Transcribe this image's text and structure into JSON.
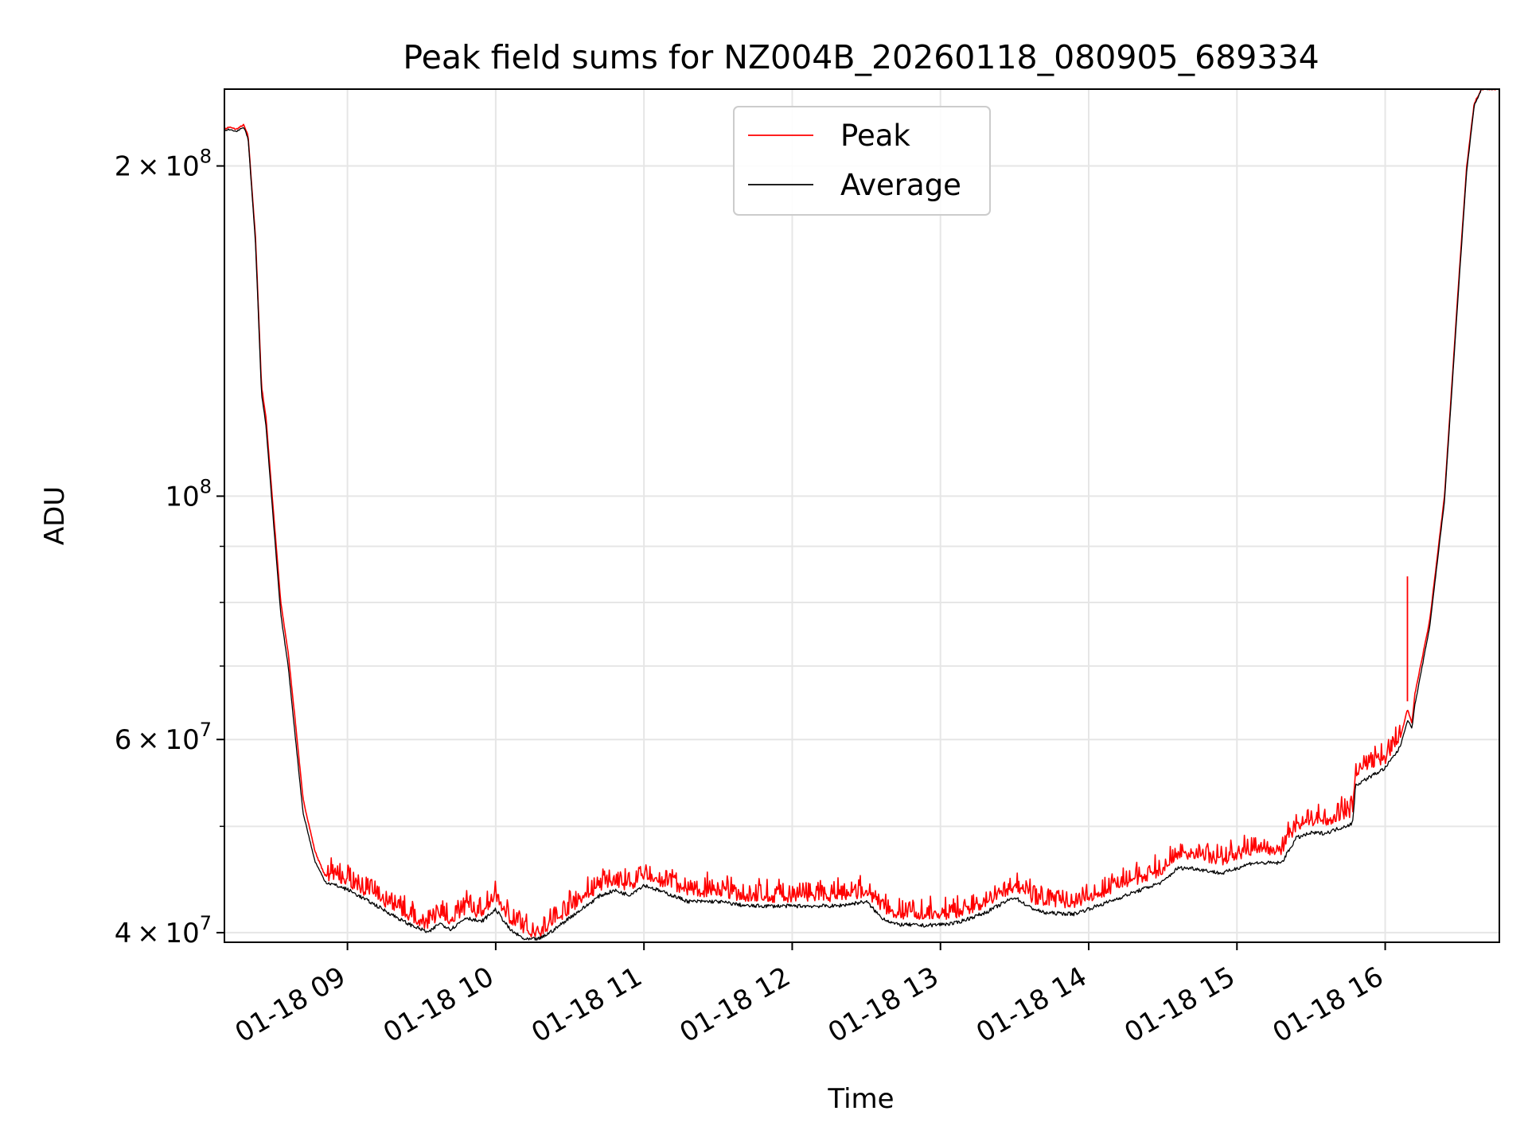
{
  "chart_data": {
    "type": "line",
    "title": "Peak field sums for NZ004B_20260118_080905_689334",
    "xlabel": "Time",
    "ylabel": "ADU",
    "yscale": "log",
    "grid": true,
    "legend_position": "upper-center",
    "x_unit": "hours since 01-18 00:00",
    "xlim": [
      8.17,
      16.77
    ],
    "ylim": [
      39200000,
      235000000
    ],
    "x_ticks": [
      {
        "value": 9,
        "label": "01-18 09"
      },
      {
        "value": 10,
        "label": "01-18 10"
      },
      {
        "value": 11,
        "label": "01-18 11"
      },
      {
        "value": 12,
        "label": "01-18 12"
      },
      {
        "value": 13,
        "label": "01-18 13"
      },
      {
        "value": 14,
        "label": "01-18 14"
      },
      {
        "value": 15,
        "label": "01-18 15"
      },
      {
        "value": 16,
        "label": "01-18 16"
      }
    ],
    "y_ticks": [
      {
        "value": 40000000,
        "mantissa": "4",
        "exponent": "7",
        "label": "4×10^7"
      },
      {
        "value": 60000000,
        "mantissa": "6",
        "exponent": "7",
        "label": "6×10^7"
      },
      {
        "value": 100000000,
        "mantissa": "",
        "exponent": "8",
        "label": "10^8"
      },
      {
        "value": 200000000,
        "mantissa": "2",
        "exponent": "8",
        "label": "2×10^8"
      }
    ],
    "y_minor_ticks": [
      50000000,
      70000000,
      80000000,
      90000000
    ],
    "series": [
      {
        "name": "Peak",
        "color": "#ff0000",
        "x": [
          8.17,
          8.2,
          8.25,
          8.3,
          8.33,
          8.38,
          8.42,
          8.45,
          8.5,
          8.55,
          8.6,
          8.65,
          8.7,
          8.78,
          8.85,
          9.0,
          9.2,
          9.4,
          9.55,
          9.62,
          9.7,
          9.8,
          9.9,
          10.0,
          10.1,
          10.2,
          10.3,
          10.4,
          10.5,
          10.6,
          10.7,
          10.8,
          10.9,
          11.0,
          11.1,
          11.2,
          11.3,
          11.5,
          11.7,
          11.9,
          12.1,
          12.3,
          12.5,
          12.6,
          12.7,
          12.9,
          13.1,
          13.3,
          13.5,
          13.6,
          13.7,
          13.9,
          14.1,
          14.3,
          14.5,
          14.6,
          14.7,
          14.9,
          15.1,
          15.3,
          15.4,
          15.5,
          15.6,
          15.78,
          15.8,
          15.9,
          16.0,
          16.1,
          16.15,
          16.18,
          16.2,
          16.3,
          16.4,
          16.5,
          16.55,
          16.6,
          16.65,
          16.77
        ],
        "y": [
          216000000,
          217000000,
          216000000,
          218000000,
          213000000,
          172000000,
          126000000,
          118000000,
          97000000,
          80000000,
          72000000,
          62000000,
          53000000,
          47500000,
          45000000,
          44500000,
          43000000,
          41500000,
          40500000,
          41500000,
          41000000,
          42000000,
          41500000,
          43000000,
          41000000,
          40000000,
          40000000,
          41000000,
          42000000,
          43000000,
          44000000,
          44500000,
          44000000,
          45000000,
          44500000,
          44000000,
          43500000,
          43500000,
          43000000,
          43000000,
          43000000,
          43000000,
          43500000,
          42000000,
          41500000,
          41500000,
          41500000,
          42500000,
          44000000,
          43000000,
          42500000,
          42500000,
          43500000,
          44500000,
          45500000,
          47000000,
          47000000,
          46500000,
          47500000,
          47500000,
          50000000,
          50500000,
          50500000,
          51500000,
          56000000,
          57000000,
          57500000,
          60000000,
          64000000,
          62000000,
          66000000,
          77000000,
          100000000,
          160000000,
          200000000,
          228000000,
          235000000,
          235000000
        ]
      },
      {
        "name": "Average",
        "color": "#000000",
        "x": [
          8.17,
          8.2,
          8.25,
          8.3,
          8.33,
          8.38,
          8.42,
          8.45,
          8.5,
          8.55,
          8.6,
          8.65,
          8.7,
          8.78,
          8.85,
          9.0,
          9.2,
          9.4,
          9.55,
          9.62,
          9.7,
          9.8,
          9.9,
          10.0,
          10.1,
          10.2,
          10.3,
          10.4,
          10.5,
          10.6,
          10.7,
          10.8,
          10.9,
          11.0,
          11.1,
          11.2,
          11.3,
          11.5,
          11.7,
          11.9,
          12.1,
          12.3,
          12.5,
          12.6,
          12.7,
          12.9,
          13.1,
          13.3,
          13.5,
          13.6,
          13.7,
          13.9,
          14.1,
          14.3,
          14.5,
          14.6,
          14.7,
          14.9,
          15.1,
          15.3,
          15.4,
          15.5,
          15.6,
          15.78,
          15.8,
          15.9,
          16.0,
          16.1,
          16.15,
          16.18,
          16.2,
          16.3,
          16.4,
          16.5,
          16.55,
          16.6,
          16.65,
          16.77
        ],
        "y": [
          215000000,
          216000000,
          215000000,
          217000000,
          212000000,
          170000000,
          124000000,
          116000000,
          95000000,
          78000000,
          70000000,
          60000000,
          51500000,
          46500000,
          44500000,
          43800000,
          42300000,
          40800000,
          40000000,
          40800000,
          40300000,
          41300000,
          40900000,
          42000000,
          40200000,
          39400000,
          39500000,
          40300000,
          41300000,
          42200000,
          43200000,
          43700000,
          43300000,
          44200000,
          43700000,
          43200000,
          42700000,
          42700000,
          42300000,
          42300000,
          42300000,
          42300000,
          42700000,
          41300000,
          40700000,
          40600000,
          40800000,
          41700000,
          43100000,
          42200000,
          41700000,
          41600000,
          42500000,
          43500000,
          44500000,
          45800000,
          45800000,
          45300000,
          46300000,
          46300000,
          48800000,
          49300000,
          49300000,
          50300000,
          54500000,
          55500000,
          56500000,
          59000000,
          62500000,
          61500000,
          64500000,
          76000000,
          99000000,
          158000000,
          198000000,
          227000000,
          235000000,
          235000000
        ]
      }
    ],
    "spikes": [
      {
        "x": 16.15,
        "y_base": 65000000,
        "y_top": 84500000,
        "series": "Peak"
      }
    ],
    "legend": [
      {
        "label": "Peak",
        "color": "#ff0000"
      },
      {
        "label": "Average",
        "color": "#000000"
      }
    ]
  }
}
